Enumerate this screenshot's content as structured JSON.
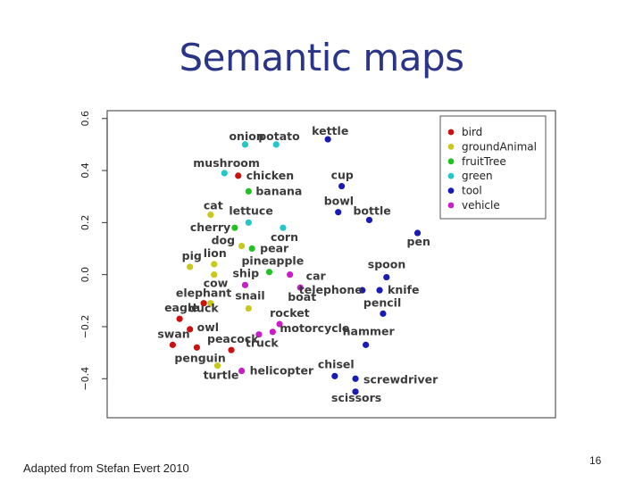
{
  "slide": {
    "title": "Semantic maps",
    "credit": "Adapted from Stefan Evert 2010",
    "page_number": "16"
  },
  "chart_data": {
    "type": "scatter",
    "title": "",
    "xlabel": "",
    "ylabel": "",
    "xlim": [
      -0.45,
      0.85
    ],
    "ylim": [
      -0.55,
      0.63
    ],
    "yticks": [
      -0.4,
      -0.2,
      0.0,
      0.2,
      0.4,
      0.6
    ],
    "ytick_labels": [
      "−0.4",
      "−0.2",
      "0.0",
      "0.2",
      "0.4",
      "0.6"
    ],
    "grid": false,
    "legend_position": "top-right",
    "categories": [
      {
        "name": "bird",
        "color": "#cc1111"
      },
      {
        "name": "groundAnimal",
        "color": "#c8c81e"
      },
      {
        "name": "fruitTree",
        "color": "#22c122"
      },
      {
        "name": "green",
        "color": "#22c8c8"
      },
      {
        "name": "tool",
        "color": "#1a1ab4"
      },
      {
        "name": "vehicle",
        "color": "#c81ec8"
      }
    ],
    "points": [
      {
        "label": "onion",
        "category": "green",
        "x": -0.05,
        "y": 0.5
      },
      {
        "label": "potato",
        "category": "green",
        "x": 0.04,
        "y": 0.5
      },
      {
        "label": "kettle",
        "category": "tool",
        "x": 0.19,
        "y": 0.52
      },
      {
        "label": "mushroom",
        "category": "green",
        "x": -0.11,
        "y": 0.39
      },
      {
        "label": "chicken",
        "category": "bird",
        "x": -0.07,
        "y": 0.38
      },
      {
        "label": "banana",
        "category": "fruitTree",
        "x": -0.04,
        "y": 0.32
      },
      {
        "label": "cup",
        "category": "tool",
        "x": 0.23,
        "y": 0.34
      },
      {
        "label": "bowl",
        "category": "tool",
        "x": 0.22,
        "y": 0.24
      },
      {
        "label": "bottle",
        "category": "tool",
        "x": 0.31,
        "y": 0.21
      },
      {
        "label": "pen",
        "category": "tool",
        "x": 0.45,
        "y": 0.16
      },
      {
        "label": "cat",
        "category": "groundAnimal",
        "x": -0.15,
        "y": 0.23
      },
      {
        "label": "lettuce",
        "category": "green",
        "x": -0.04,
        "y": 0.2
      },
      {
        "label": "cherry",
        "category": "fruitTree",
        "x": -0.08,
        "y": 0.18
      },
      {
        "label": "corn",
        "category": "green",
        "x": 0.06,
        "y": 0.18
      },
      {
        "label": "dog",
        "category": "groundAnimal",
        "x": -0.06,
        "y": 0.11
      },
      {
        "label": "pear",
        "category": "fruitTree",
        "x": -0.03,
        "y": 0.1
      },
      {
        "label": "lion",
        "category": "groundAnimal",
        "x": -0.14,
        "y": 0.04
      },
      {
        "label": "pig",
        "category": "groundAnimal",
        "x": -0.21,
        "y": 0.03
      },
      {
        "label": "pineapple",
        "category": "fruitTree",
        "x": 0.02,
        "y": 0.01
      },
      {
        "label": "car",
        "category": "vehicle",
        "x": 0.08,
        "y": 0.0
      },
      {
        "label": "cow",
        "category": "groundAnimal",
        "x": -0.14,
        "y": 0.0
      },
      {
        "label": "ship",
        "category": "vehicle",
        "x": -0.05,
        "y": -0.04
      },
      {
        "label": "boat",
        "category": "vehicle",
        "x": 0.11,
        "y": -0.05
      },
      {
        "label": "spoon",
        "category": "tool",
        "x": 0.36,
        "y": -0.01
      },
      {
        "label": "telephone",
        "category": "tool",
        "x": 0.29,
        "y": -0.06
      },
      {
        "label": "knife",
        "category": "tool",
        "x": 0.34,
        "y": -0.06
      },
      {
        "label": "elephant",
        "category": "groundAnimal",
        "x": -0.15,
        "y": -0.11
      },
      {
        "label": "snail",
        "category": "groundAnimal",
        "x": -0.04,
        "y": -0.13
      },
      {
        "label": "pencil",
        "category": "tool",
        "x": 0.35,
        "y": -0.15
      },
      {
        "label": "eagle",
        "category": "bird",
        "x": -0.24,
        "y": -0.17
      },
      {
        "label": "duck",
        "category": "bird",
        "x": -0.17,
        "y": -0.11
      },
      {
        "label": "owl",
        "category": "bird",
        "x": -0.21,
        "y": -0.21
      },
      {
        "label": "rocket",
        "category": "vehicle",
        "x": 0.05,
        "y": -0.19
      },
      {
        "label": "motorcycle",
        "category": "vehicle",
        "x": 0.03,
        "y": -0.22
      },
      {
        "label": "swan",
        "category": "bird",
        "x": -0.26,
        "y": -0.27
      },
      {
        "label": "truck",
        "category": "vehicle",
        "x": -0.01,
        "y": -0.23
      },
      {
        "label": "hammer",
        "category": "tool",
        "x": 0.3,
        "y": -0.27
      },
      {
        "label": "peacock",
        "category": "bird",
        "x": -0.09,
        "y": -0.29
      },
      {
        "label": "penguin",
        "category": "bird",
        "x": -0.19,
        "y": -0.28
      },
      {
        "label": "turtle",
        "category": "groundAnimal",
        "x": -0.13,
        "y": -0.35
      },
      {
        "label": "helicopter",
        "category": "vehicle",
        "x": -0.06,
        "y": -0.37
      },
      {
        "label": "chisel",
        "category": "tool",
        "x": 0.21,
        "y": -0.39
      },
      {
        "label": "screwdriver",
        "category": "tool",
        "x": 0.27,
        "y": -0.4
      },
      {
        "label": "scissors",
        "category": "tool",
        "x": 0.27,
        "y": -0.45
      }
    ]
  }
}
